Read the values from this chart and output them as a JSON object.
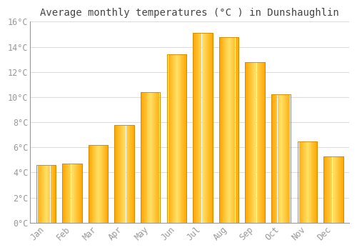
{
  "title": "Average monthly temperatures (°C ) in Dunshaughlin",
  "months": [
    "Jan",
    "Feb",
    "Mar",
    "Apr",
    "May",
    "Jun",
    "Jul",
    "Aug",
    "Sep",
    "Oct",
    "Nov",
    "Dec"
  ],
  "values": [
    4.6,
    4.7,
    6.2,
    7.8,
    10.4,
    13.4,
    15.1,
    14.8,
    12.8,
    10.2,
    6.5,
    5.3
  ],
  "bar_color_top": "#FFD966",
  "bar_color_bottom": "#FFA500",
  "bar_edge_color": "#CC8800",
  "background_color": "#FFFFFF",
  "grid_color": "#DDDDDD",
  "ylim": [
    0,
    16
  ],
  "ytick_step": 2,
  "title_fontsize": 10,
  "tick_fontsize": 8.5,
  "tick_color": "#999999",
  "font_family": "monospace"
}
